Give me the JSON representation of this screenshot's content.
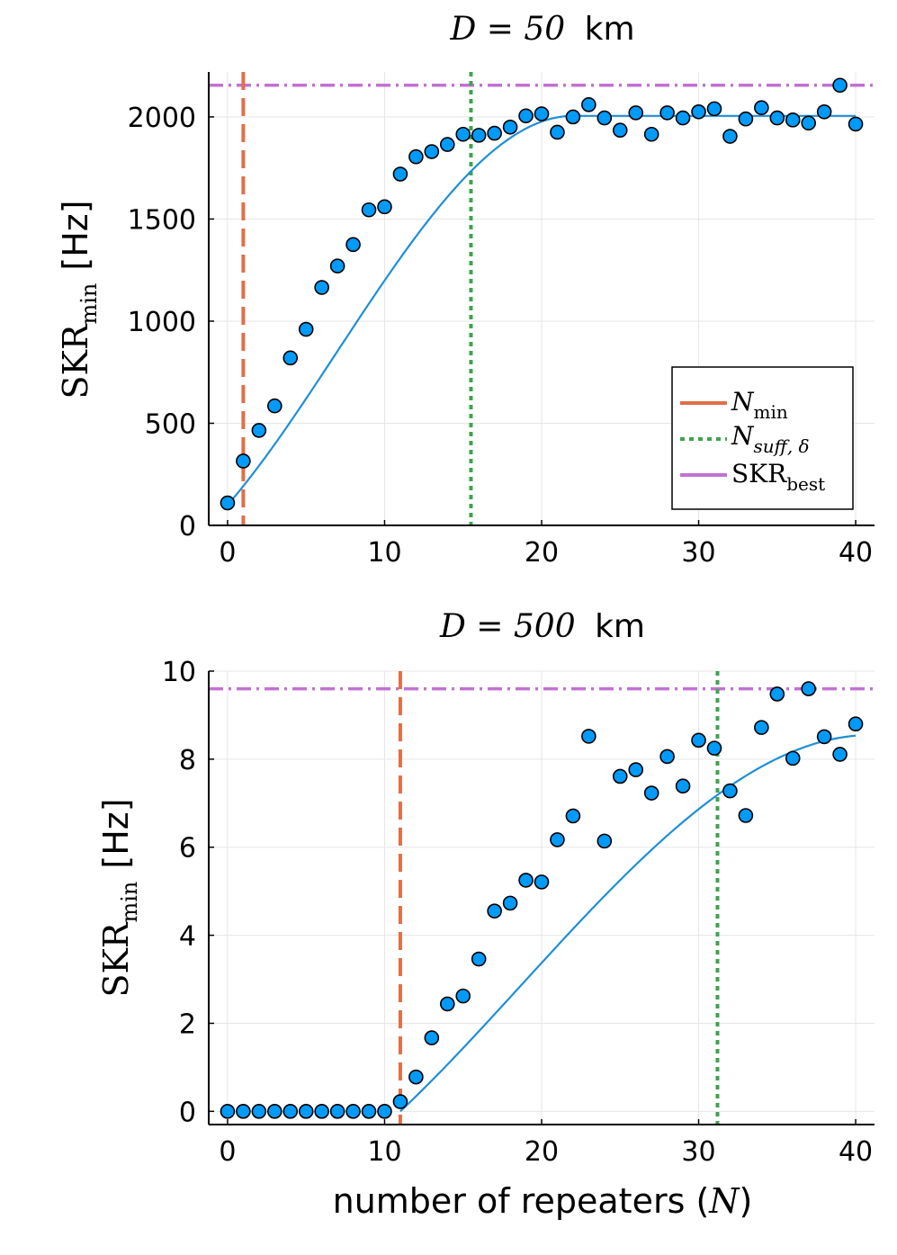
{
  "colors": {
    "fit": "#1f8fd6",
    "point_fill": "#009af9",
    "point_edge": "#000000",
    "n_min": "#e26f46",
    "n_suff": "#3da44d",
    "skr_best": "#c271d2",
    "axis": "#000000",
    "grid": "#e6e6e6"
  },
  "legend": {
    "n_min": {
      "base": "N",
      "sub": "min"
    },
    "n_suff": {
      "base": "N",
      "sub": "suff, δ"
    },
    "skr_best": {
      "base": "SKR",
      "sub": "best"
    }
  },
  "chart_data": [
    {
      "type": "scatter",
      "title": {
        "prefix": "D = 50",
        "unit": "km"
      },
      "ylabel": {
        "base": "SKR",
        "sub": "min",
        "unit": "[Hz]"
      },
      "xlabel": "",
      "xlim": [
        -1.2,
        41.2
      ],
      "ylim": [
        0,
        2220
      ],
      "xticks": [
        0,
        10,
        20,
        30,
        40
      ],
      "yticks": [
        0,
        500,
        1000,
        1500,
        2000
      ],
      "x": [
        0,
        1,
        2,
        3,
        4,
        5,
        6,
        7,
        8,
        9,
        10,
        11,
        12,
        13,
        14,
        15,
        16,
        17,
        18,
        19,
        20,
        21,
        22,
        23,
        24,
        25,
        26,
        27,
        28,
        29,
        30,
        31,
        32,
        33,
        34,
        35,
        36,
        37,
        38,
        39,
        40
      ],
      "values": [
        110,
        315,
        465,
        585,
        820,
        960,
        1165,
        1270,
        1375,
        1545,
        1560,
        1720,
        1805,
        1830,
        1865,
        1915,
        1910,
        1920,
        1950,
        2005,
        2015,
        1925,
        2000,
        2060,
        1995,
        1935,
        2020,
        1915,
        2020,
        1995,
        2025,
        2040,
        1905,
        1990,
        2045,
        1995,
        1985,
        1970,
        2025,
        2155,
        1965
      ],
      "fit": {
        "name": "fit",
        "y0": 100,
        "y_max": 2005,
        "x_sat": 22
      },
      "n_min": 1,
      "n_suff": 15.5,
      "skr_best": 2155,
      "legend_position": "bottom-right"
    },
    {
      "type": "scatter",
      "title": {
        "prefix": "D = 500",
        "unit": "km"
      },
      "ylabel": {
        "base": "SKR",
        "sub": "min",
        "unit": "[Hz]"
      },
      "xlabel": {
        "text": "number of repeaters (",
        "var": "N",
        "end": ")"
      },
      "xlim": [
        -1.2,
        41.2
      ],
      "ylim": [
        -0.3,
        10
      ],
      "xticks": [
        0,
        10,
        20,
        30,
        40
      ],
      "yticks": [
        0,
        2,
        4,
        6,
        8,
        10
      ],
      "x": [
        0,
        1,
        2,
        3,
        4,
        5,
        6,
        7,
        8,
        9,
        10,
        11,
        12,
        13,
        14,
        15,
        16,
        17,
        18,
        19,
        20,
        21,
        22,
        23,
        24,
        25,
        26,
        27,
        28,
        29,
        30,
        31,
        32,
        33,
        34,
        35,
        36,
        37,
        38,
        39,
        40
      ],
      "values": [
        0,
        0,
        0,
        0,
        0,
        0,
        0,
        0,
        0,
        0,
        0,
        0.22,
        0.78,
        1.67,
        2.44,
        2.62,
        3.46,
        4.55,
        4.73,
        5.25,
        5.21,
        6.17,
        6.71,
        8.52,
        6.14,
        7.61,
        7.76,
        7.23,
        8.06,
        7.39,
        8.43,
        8.25,
        7.28,
        6.72,
        8.72,
        9.48,
        8.02,
        9.6,
        8.51,
        8.11,
        8.8
      ],
      "fit": {
        "name": "fit",
        "x0": 11,
        "y_max": 8.55,
        "x_sat": 41
      },
      "n_min": 11,
      "n_suff": 31.2,
      "skr_best": 9.6,
      "legend_position": "none"
    }
  ]
}
